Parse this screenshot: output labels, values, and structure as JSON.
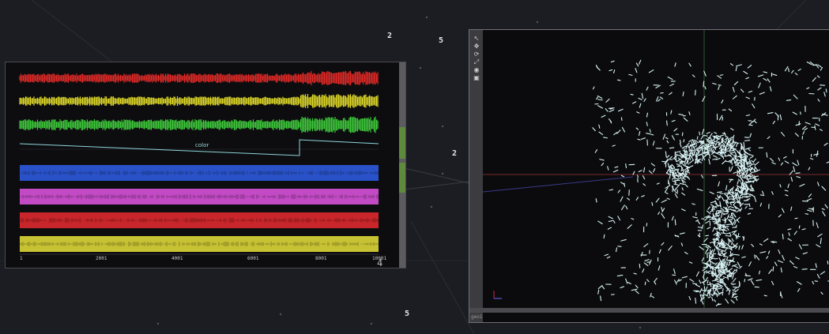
{
  "network": {
    "labels": [
      "2",
      "5",
      "2",
      "5"
    ]
  },
  "chop_viewer": {
    "channel_label": "color",
    "x_ticks": [
      "1",
      "2001",
      "4001",
      "6001",
      "8001",
      "10001"
    ],
    "footer_number": "4",
    "channel_colors": [
      "#e02a26",
      "#dcd628",
      "#3ec93a",
      "#2a52c8",
      "#c24ac4",
      "#c8262a",
      "#c7c233"
    ],
    "line_color": "#8fd6d9"
  },
  "geo_viewer": {
    "toolbar_icons": [
      "select-icon",
      "move-icon",
      "rotate-icon",
      "scale-icon",
      "view-icon",
      "camera-icon"
    ],
    "footer_text": "geo1",
    "particle_color": "#d8f3f5"
  }
}
